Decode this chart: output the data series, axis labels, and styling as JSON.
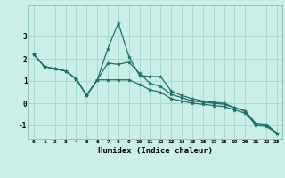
{
  "xlabel": "Humidex (Indice chaleur)",
  "bg_color": "#cceee8",
  "grid_color": "#aad8d0",
  "line_color": "#1a7068",
  "xlim": [
    -0.5,
    23.5
  ],
  "ylim": [
    -1.6,
    4.4
  ],
  "x": [
    0,
    1,
    2,
    3,
    4,
    5,
    6,
    7,
    8,
    9,
    10,
    11,
    12,
    13,
    14,
    15,
    16,
    17,
    18,
    19,
    20,
    21,
    22,
    23
  ],
  "line1": [
    2.2,
    1.65,
    1.55,
    1.45,
    1.1,
    0.35,
    1.05,
    2.45,
    3.6,
    2.1,
    1.25,
    1.2,
    1.2,
    0.55,
    0.35,
    0.2,
    0.1,
    0.05,
    0.0,
    -0.2,
    -0.35,
    -1.0,
    -1.05,
    -1.35
  ],
  "line2": [
    2.2,
    1.65,
    1.55,
    1.45,
    1.1,
    0.35,
    1.05,
    1.8,
    1.75,
    1.85,
    1.35,
    0.9,
    0.75,
    0.4,
    0.25,
    0.1,
    0.05,
    0.0,
    -0.05,
    -0.2,
    -0.35,
    -0.9,
    -0.95,
    -1.35
  ],
  "line3": [
    2.2,
    1.65,
    1.55,
    1.45,
    1.1,
    0.35,
    1.05,
    1.05,
    1.05,
    1.05,
    0.85,
    0.6,
    0.5,
    0.2,
    0.1,
    0.0,
    -0.05,
    -0.1,
    -0.15,
    -0.3,
    -0.45,
    -0.95,
    -1.0,
    -1.35
  ],
  "xtick_labels": [
    "0",
    "1",
    "2",
    "3",
    "4",
    "5",
    "6",
    "7",
    "8",
    "9",
    "10",
    "11",
    "12",
    "13",
    "14",
    "15",
    "16",
    "17",
    "18",
    "19",
    "20",
    "21",
    "22",
    "23"
  ],
  "ytick_values": [
    -1,
    0,
    1,
    2,
    3
  ],
  "markersize": 3,
  "linewidth": 0.9
}
